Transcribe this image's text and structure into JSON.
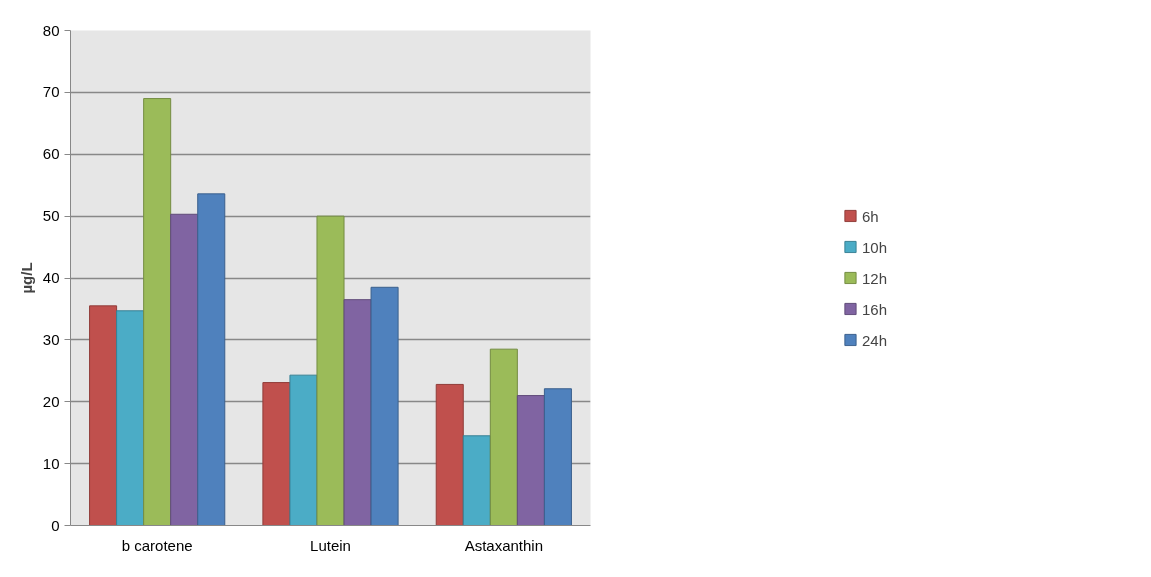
{
  "chart_data": {
    "type": "bar",
    "ylabel": "µg/L",
    "categories": [
      "b carotene",
      "Lutein",
      "Astaxanthin"
    ],
    "ylim": [
      0,
      80
    ],
    "yticks": [
      0,
      10,
      20,
      30,
      40,
      50,
      60,
      70,
      80
    ],
    "grid": "y",
    "legend": "right",
    "series": [
      {
        "name": "6h",
        "color": "#c0504d",
        "values": [
          35.5,
          23.1,
          22.8
        ]
      },
      {
        "name": "10h",
        "color": "#4bacc6",
        "values": [
          34.7,
          24.3,
          14.5
        ]
      },
      {
        "name": "12h",
        "color": "#9bbb59",
        "values": [
          69,
          50,
          28.5
        ]
      },
      {
        "name": "16h",
        "color": "#8064a2",
        "values": [
          50.3,
          36.5,
          21
        ]
      },
      {
        "name": "24h",
        "color": "#4f81bd",
        "values": [
          53.6,
          38.5,
          22.1
        ]
      }
    ]
  }
}
